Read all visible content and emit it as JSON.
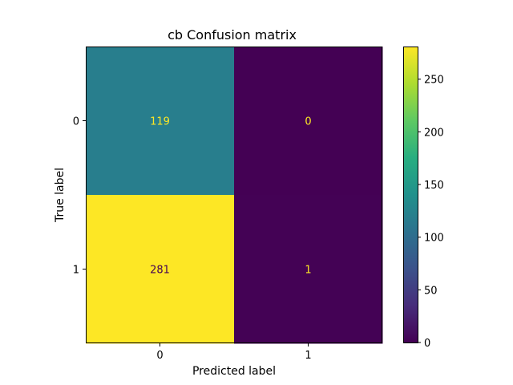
{
  "chart_data": {
    "type": "heatmap",
    "title": "cb Confusion matrix",
    "xlabel": "Predicted label",
    "ylabel": "True label",
    "x_categories": [
      "0",
      "1"
    ],
    "y_categories": [
      "0",
      "1"
    ],
    "values": [
      [
        119,
        0
      ],
      [
        281,
        1
      ]
    ],
    "value_labels": [
      [
        "119",
        "0"
      ],
      [
        "281",
        "1"
      ]
    ],
    "colormap": "viridis",
    "colorbar": {
      "range": [
        0,
        281
      ],
      "ticks": [
        0,
        50,
        100,
        150,
        200,
        250
      ],
      "tick_labels": [
        "0",
        "50",
        "100",
        "150",
        "200",
        "250"
      ]
    },
    "colors": {
      "low_text": "#fde725",
      "high_text": "#440154"
    },
    "grid": false,
    "legend": "colorbar-right"
  }
}
